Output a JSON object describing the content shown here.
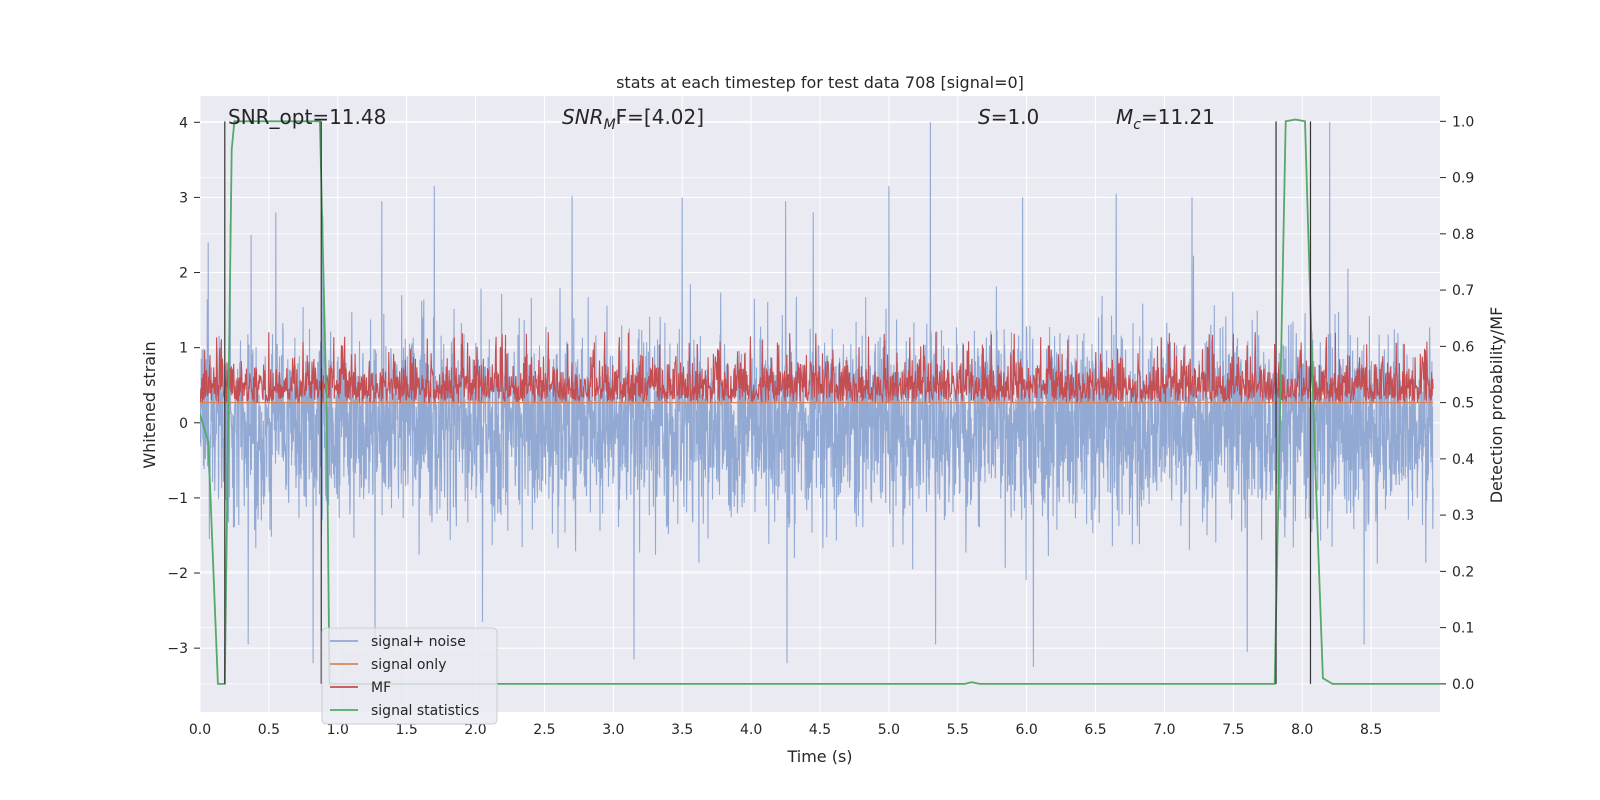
{
  "chart_data": {
    "type": "line",
    "title": "stats at each timestep for test data 708 [signal=0]",
    "xlabel": "Time (s)",
    "ylabel_left": "Whitened strain",
    "ylabel_right": "Detection probability/MF",
    "xlim": [
      0.0,
      9.0
    ],
    "ylim_left": [
      -3.85,
      4.35
    ],
    "ylim_right": [
      -0.05,
      1.045
    ],
    "x_ticks": [
      "0.0",
      "0.5",
      "1.0",
      "1.5",
      "2.0",
      "2.5",
      "3.0",
      "3.5",
      "4.0",
      "4.5",
      "5.0",
      "5.5",
      "6.0",
      "6.5",
      "7.0",
      "7.5",
      "8.0",
      "8.5"
    ],
    "y_left_ticks": [
      "4",
      "3",
      "2",
      "1",
      "0",
      "−1",
      "−2",
      "−3"
    ],
    "y_right_ticks": [
      "1.0",
      "0.9",
      "0.8",
      "0.7",
      "0.6",
      "0.5",
      "0.4",
      "0.3",
      "0.2",
      "0.1",
      "0.0"
    ],
    "annotations": {
      "snr_opt": "SNR_opt=11.48",
      "snr_mf": "SNR",
      "snr_mf_sub": "M",
      "snr_mf_rest": "F=[4.02]",
      "s_sym": "S",
      "s_val": "=1.0",
      "mc_sym": "M",
      "mc_sub": "c",
      "mc_val": "=11.21"
    },
    "series": [
      {
        "name": "signal+ noise",
        "color": "#92a9d3",
        "envelope": "noise, approx ±2 strain, spikes to ≈4 and ≈−3.3",
        "peaks": [
          [
            0.06,
            2.4
          ],
          [
            0.22,
            2.65
          ],
          [
            0.37,
            2.5
          ],
          [
            0.55,
            2.8
          ],
          [
            0.89,
            2.75
          ],
          [
            1.32,
            2.95
          ],
          [
            1.7,
            3.15
          ],
          [
            2.7,
            3.02
          ],
          [
            3.5,
            3.0
          ],
          [
            4.25,
            2.95
          ],
          [
            4.45,
            2.8
          ],
          [
            5.0,
            3.15
          ],
          [
            5.3,
            4.0
          ],
          [
            5.97,
            3.0
          ],
          [
            6.65,
            3.05
          ],
          [
            7.2,
            3.0
          ],
          [
            8.2,
            4.0
          ]
        ],
        "troughs": [
          [
            0.35,
            -2.95
          ],
          [
            0.82,
            -3.2
          ],
          [
            1.27,
            -3.0
          ],
          [
            2.05,
            -2.65
          ],
          [
            3.15,
            -3.15
          ],
          [
            4.26,
            -3.2
          ],
          [
            5.34,
            -2.95
          ],
          [
            6.05,
            -3.25
          ],
          [
            7.6,
            -3.05
          ],
          [
            8.45,
            -2.95
          ]
        ]
      },
      {
        "name": "signal only",
        "color": "#dd8452",
        "y_right": 0.5
      },
      {
        "name": "MF",
        "color": "#c44e52",
        "band_right": [
          0.5,
          0.57
        ],
        "peaks_right": [
          [
            0.5,
            0.625
          ],
          [
            1.05,
            0.617
          ],
          [
            1.65,
            0.614
          ],
          [
            2.15,
            0.617
          ],
          [
            5.15,
            0.616
          ],
          [
            6.3,
            0.612
          ],
          [
            6.95,
            0.6
          ],
          [
            7.6,
            0.602
          ]
        ]
      },
      {
        "name": "signal statistics",
        "color": "#55a868",
        "points": [
          [
            0.0,
            0.48
          ],
          [
            0.06,
            0.43
          ],
          [
            0.13,
            0.0
          ],
          [
            0.18,
            0.0
          ],
          [
            0.23,
            0.95
          ],
          [
            0.25,
            1.0
          ],
          [
            0.87,
            1.0
          ],
          [
            0.92,
            0.47
          ],
          [
            0.94,
            0.0
          ],
          [
            5.55,
            0.0
          ],
          [
            5.6,
            0.003
          ],
          [
            5.66,
            0.0
          ],
          [
            7.8,
            0.0
          ],
          [
            7.88,
            1.0
          ],
          [
            7.95,
            1.003
          ],
          [
            8.02,
            1.0
          ],
          [
            8.09,
            0.42
          ],
          [
            8.15,
            0.01
          ],
          [
            8.22,
            0.0
          ],
          [
            9.0,
            0.0
          ]
        ]
      }
    ],
    "vlines_x": [
      0.18,
      0.88,
      7.81,
      8.06
    ],
    "legend": {
      "placement": "lower-left",
      "entries": [
        {
          "label": "signal+ noise",
          "color": "#92a9d3"
        },
        {
          "label": "signal only",
          "color": "#dd8452"
        },
        {
          "label": "MF",
          "color": "#c44e52"
        },
        {
          "label": "signal statistics",
          "color": "#55a868"
        }
      ]
    }
  }
}
